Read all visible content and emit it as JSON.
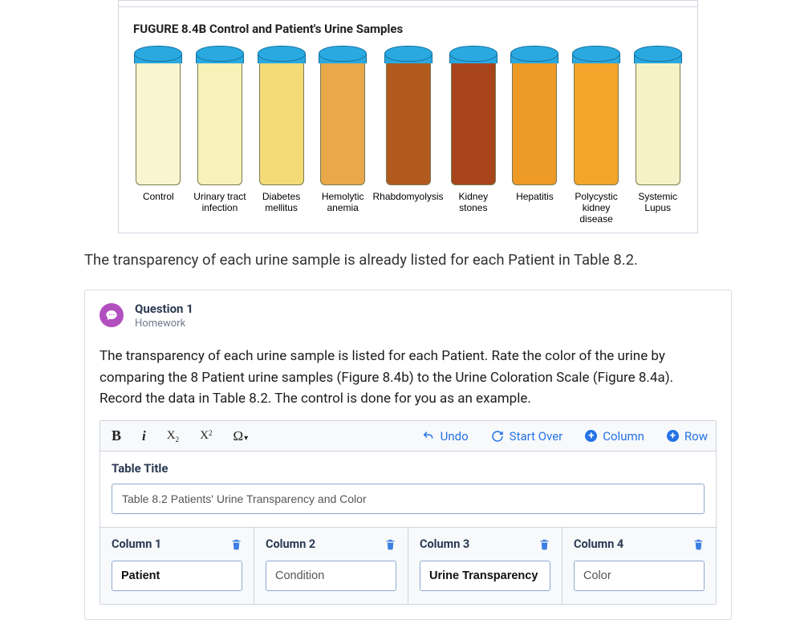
{
  "figure": {
    "title": "FUGURE 8.4B Control and Patient's Urine Samples",
    "cap_color": "#2aa9e0",
    "cap_border": "#1271a0",
    "tubes": [
      {
        "label": "Control",
        "fill": "#f8f5cf"
      },
      {
        "label": "Urinary tract infection",
        "fill": "#f8f2b9"
      },
      {
        "label": "Diabetes mellitus",
        "fill": "#f4db77"
      },
      {
        "label": "Hemolytic anemia",
        "fill": "#e9a84a"
      },
      {
        "label": "Rhabdomyolysis",
        "fill": "#b05a1d"
      },
      {
        "label": "Kidney stones",
        "fill": "#a7441b"
      },
      {
        "label": "Hepatitis",
        "fill": "#ee9a26"
      },
      {
        "label": "Polycystic kidney disease",
        "fill": "#f2a52a"
      },
      {
        "label": "Systemic Lupus",
        "fill": "#f6f2c7"
      }
    ]
  },
  "intro_text": "The transparency of each urine sample is already listed for each Patient in Table 8.2.",
  "question": {
    "title": "Question 1",
    "subtitle": "Homework",
    "body": "The transparency of each urine sample is listed for each Patient. Rate the color of the urine by comparing the 8 Patient urine samples (Figure 8.4b) to the Urine Coloration Scale (Figure 8.4a). Record the data in Table 8.2. The control is done for you as an example."
  },
  "toolbar": {
    "undo": "Undo",
    "start_over": "Start Over",
    "add_column": "Column",
    "add_row": "Row"
  },
  "table": {
    "title_label": "Table Title",
    "title_value": "Table 8.2 Patients' Urine Transparency and Color",
    "columns": [
      {
        "header": "Column 1",
        "value": "Patient",
        "bold": true
      },
      {
        "header": "Column 2",
        "value": "Condition",
        "bold": false
      },
      {
        "header": "Column 3",
        "value": "Urine Transparency",
        "bold": true
      },
      {
        "header": "Column 4",
        "value": "Color",
        "bold": false
      }
    ]
  },
  "colors": {
    "link": "#2573e5",
    "icon_purple": "#b24fbf",
    "trash": "#3d7fe0"
  }
}
